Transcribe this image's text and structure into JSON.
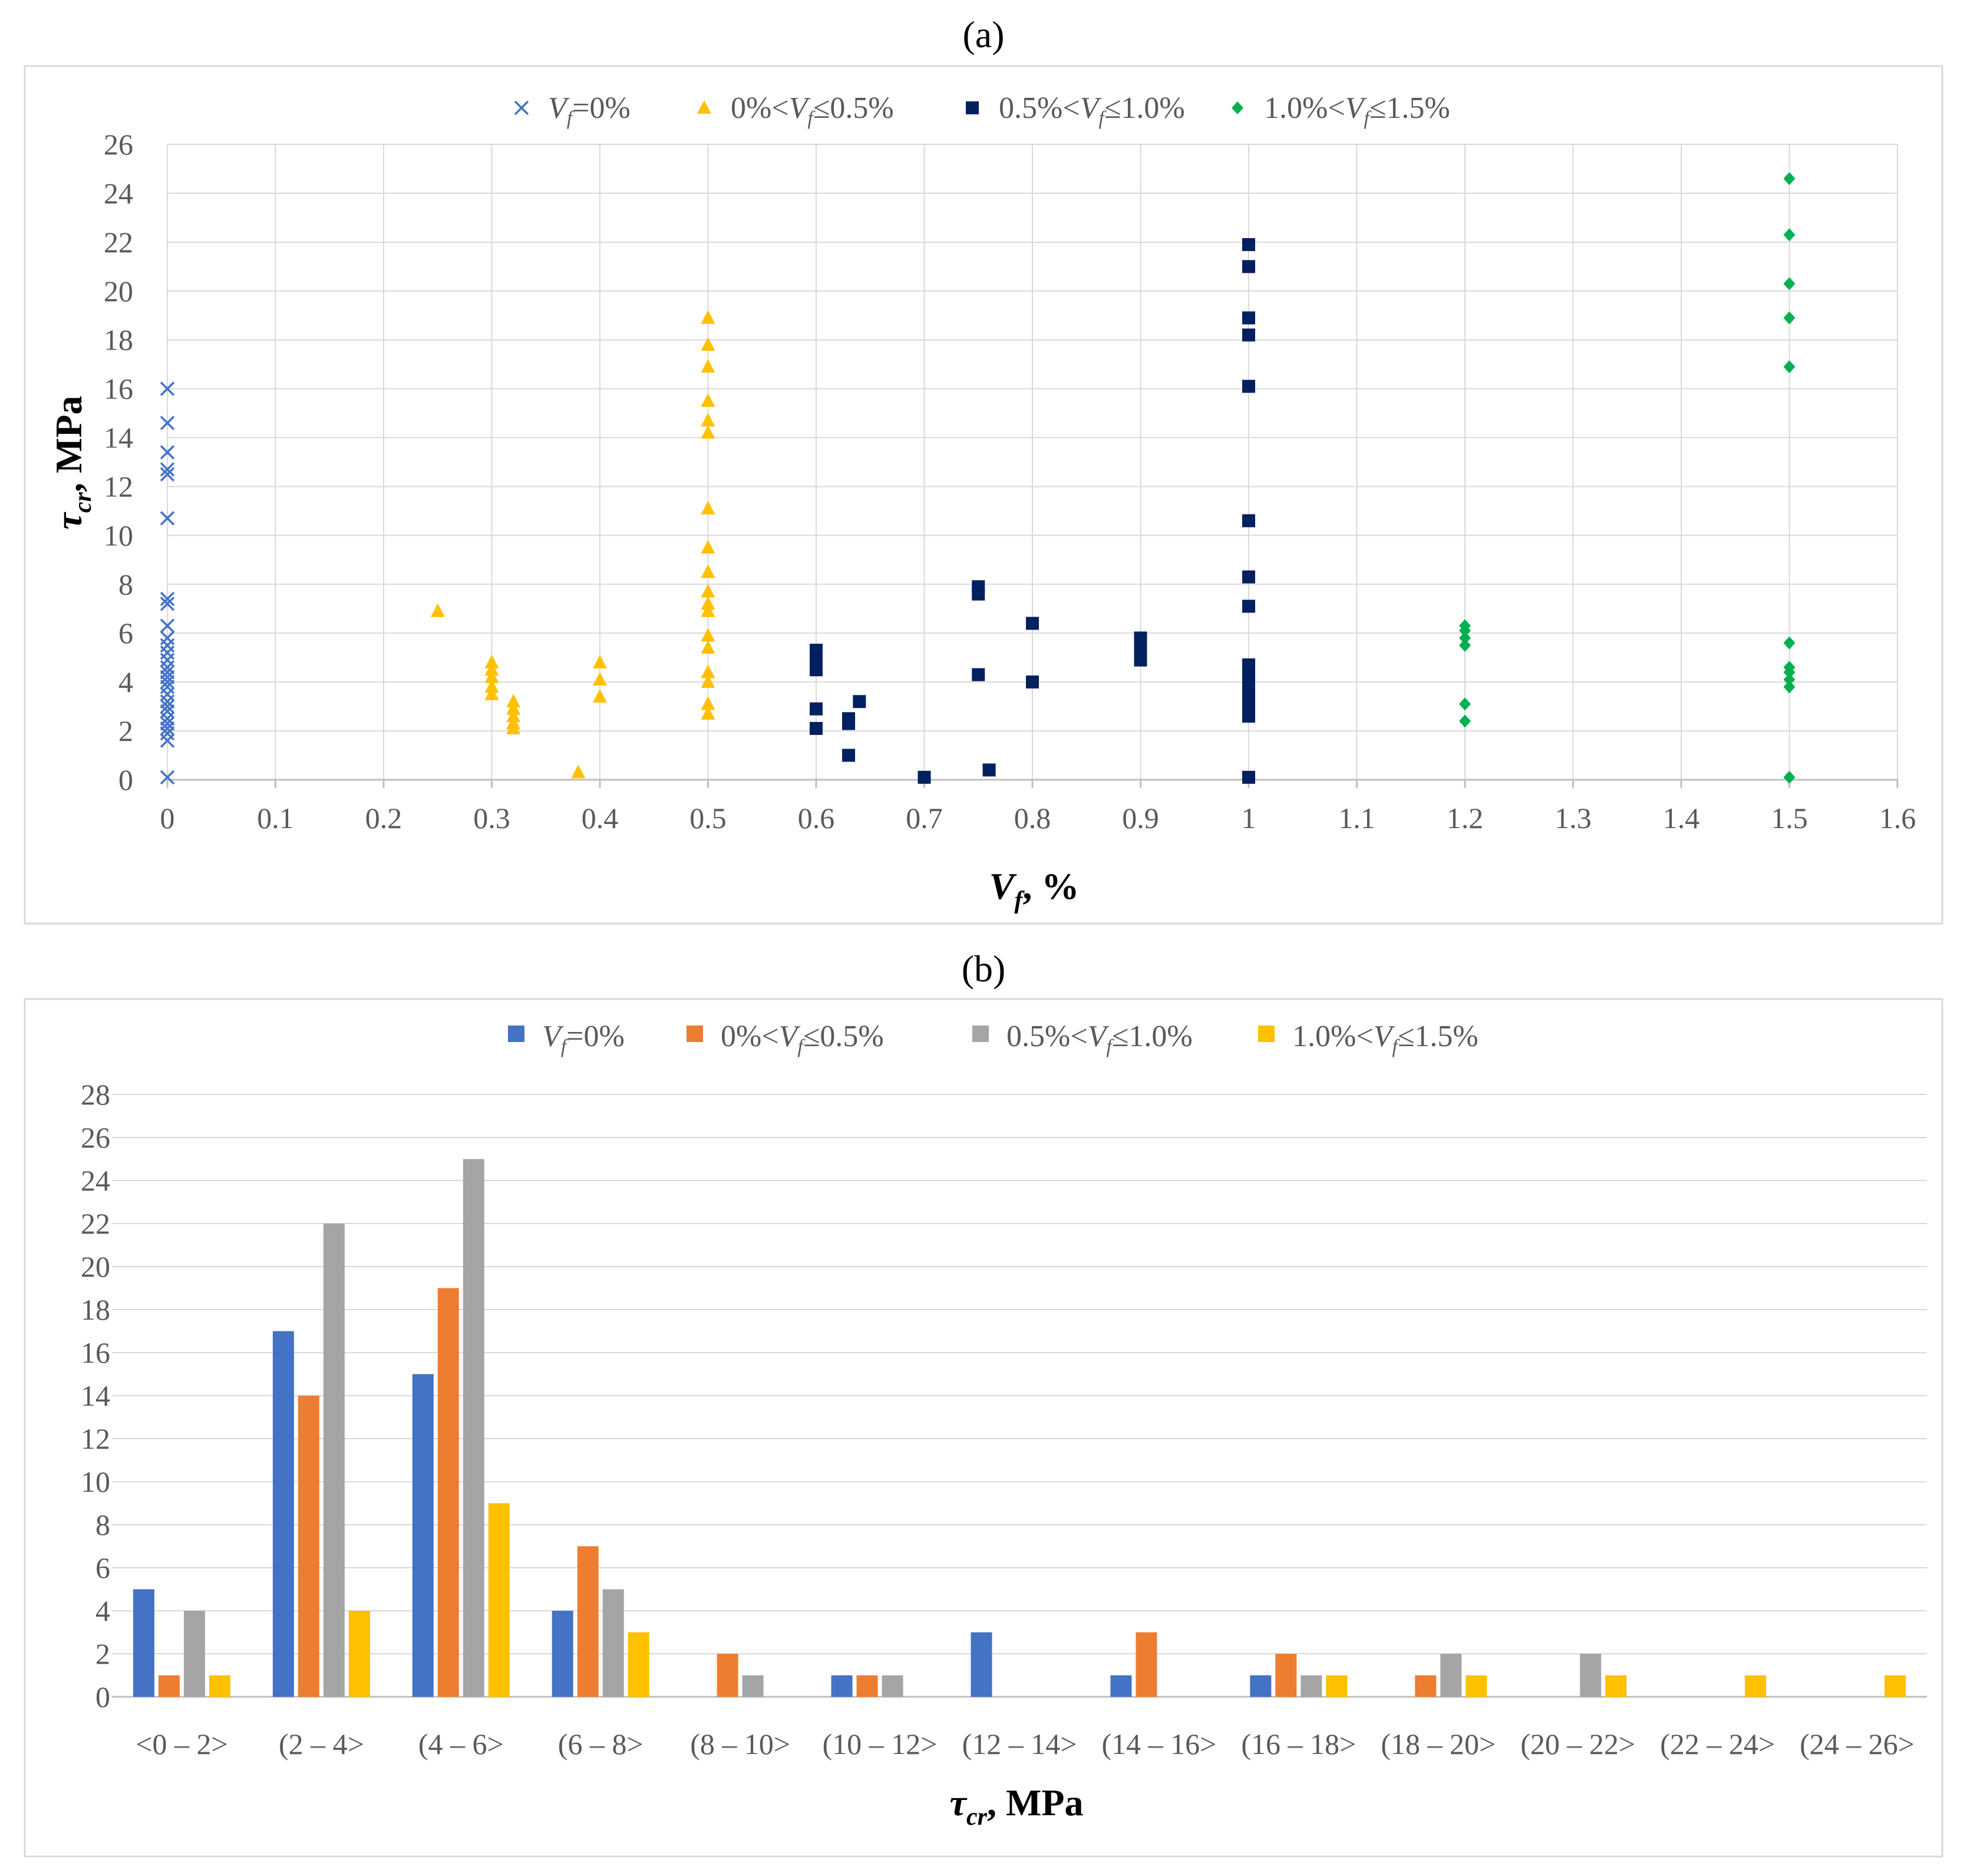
{
  "panel_labels": [
    "(a)",
    "(b)"
  ],
  "chart_data": [
    {
      "type": "scatter",
      "xlabel": "V_f, %",
      "ylabel": "τ_cr, MPa",
      "xlim": [
        0,
        1.6
      ],
      "ylim": [
        0,
        26
      ],
      "x_ticks": [
        0,
        0.1,
        0.2,
        0.3,
        0.4,
        0.5,
        0.6,
        0.7,
        0.8,
        0.9,
        1,
        1.1,
        1.2,
        1.3,
        1.4,
        1.5,
        1.6
      ],
      "x_tick_labels": [
        "0",
        "0.1",
        "0.2",
        "0.3",
        "0.4",
        "0.5",
        "0.6",
        "0.7",
        "0.8",
        "0.9",
        "1",
        "1.1",
        "1.2",
        "1.3",
        "1.4",
        "1.5",
        "1.6"
      ],
      "y_ticks": [
        0,
        2,
        4,
        6,
        8,
        10,
        12,
        14,
        16,
        18,
        20,
        22,
        24,
        26
      ],
      "y_tick_labels": [
        "0",
        "2",
        "4",
        "6",
        "8",
        "10",
        "12",
        "14",
        "16",
        "18",
        "20",
        "22",
        "24",
        "26"
      ],
      "grid": true,
      "legend_position": "top-center",
      "series": [
        {
          "name": "Vf=0%",
          "legend": [
            "V",
            "f",
            "=0%"
          ],
          "marker": "x",
          "color": "#4472C4",
          "points": [
            [
              0,
              16.0
            ],
            [
              0,
              14.6
            ],
            [
              0,
              13.4
            ],
            [
              0,
              12.7
            ],
            [
              0,
              12.5
            ],
            [
              0,
              10.7
            ],
            [
              0,
              7.4
            ],
            [
              0,
              7.2
            ],
            [
              0,
              6.3
            ],
            [
              0,
              5.8
            ],
            [
              0,
              5.5
            ],
            [
              0,
              5.2
            ],
            [
              0,
              4.9
            ],
            [
              0,
              4.6
            ],
            [
              0,
              4.4
            ],
            [
              0,
              4.2
            ],
            [
              0,
              4.0
            ],
            [
              0,
              3.8
            ],
            [
              0,
              3.5
            ],
            [
              0,
              3.2
            ],
            [
              0,
              3.0
            ],
            [
              0,
              2.8
            ],
            [
              0,
              2.5
            ],
            [
              0,
              2.3
            ],
            [
              0,
              2.1
            ],
            [
              0,
              1.9
            ],
            [
              0,
              1.6
            ],
            [
              0,
              0.1
            ]
          ]
        },
        {
          "name": "0%<Vf≤0.5%",
          "legend": [
            "0%<V",
            "f",
            "≤0.5%"
          ],
          "marker": "triangle",
          "color": "#FFC000",
          "points": [
            [
              0.25,
              6.9
            ],
            [
              0.3,
              4.8
            ],
            [
              0.3,
              4.5
            ],
            [
              0.3,
              4.2
            ],
            [
              0.3,
              3.8
            ],
            [
              0.3,
              3.5
            ],
            [
              0.32,
              3.2
            ],
            [
              0.32,
              2.9
            ],
            [
              0.32,
              2.6
            ],
            [
              0.32,
              2.3
            ],
            [
              0.32,
              2.1
            ],
            [
              0.38,
              0.3
            ],
            [
              0.4,
              4.8
            ],
            [
              0.4,
              4.1
            ],
            [
              0.4,
              3.4
            ],
            [
              0.5,
              18.9
            ],
            [
              0.5,
              17.8
            ],
            [
              0.5,
              16.9
            ],
            [
              0.5,
              15.5
            ],
            [
              0.5,
              14.7
            ],
            [
              0.5,
              14.2
            ],
            [
              0.5,
              11.1
            ],
            [
              0.5,
              9.5
            ],
            [
              0.5,
              8.5
            ],
            [
              0.5,
              7.7
            ],
            [
              0.5,
              7.2
            ],
            [
              0.5,
              6.9
            ],
            [
              0.5,
              5.9
            ],
            [
              0.5,
              5.4
            ],
            [
              0.5,
              4.4
            ],
            [
              0.5,
              4.0
            ],
            [
              0.5,
              3.1
            ],
            [
              0.5,
              2.7
            ]
          ]
        },
        {
          "name": "0.5%<Vf≤1.0%",
          "legend": [
            "0.5%<V",
            "f",
            "≤1.0%"
          ],
          "marker": "square",
          "color": "#002060",
          "points": [
            [
              0.6,
              5.3
            ],
            [
              0.6,
              5.0
            ],
            [
              0.6,
              4.7
            ],
            [
              0.6,
              4.5
            ],
            [
              0.6,
              2.9
            ],
            [
              0.6,
              2.1
            ],
            [
              0.63,
              2.5
            ],
            [
              0.63,
              2.3
            ],
            [
              0.63,
              1.0
            ],
            [
              0.64,
              3.2
            ],
            [
              0.7,
              0.1
            ],
            [
              0.75,
              7.9
            ],
            [
              0.75,
              7.6
            ],
            [
              0.75,
              4.3
            ],
            [
              0.76,
              0.4
            ],
            [
              0.8,
              6.4
            ],
            [
              0.8,
              4.0
            ],
            [
              0.9,
              5.8
            ],
            [
              0.9,
              5.5
            ],
            [
              0.9,
              5.2
            ],
            [
              0.9,
              4.9
            ],
            [
              1,
              21.9
            ],
            [
              1,
              21.0
            ],
            [
              1,
              18.9
            ],
            [
              1,
              18.2
            ],
            [
              1,
              16.1
            ],
            [
              1,
              10.6
            ],
            [
              1,
              8.3
            ],
            [
              1,
              7.1
            ],
            [
              1,
              4.7
            ],
            [
              1,
              4.4
            ],
            [
              1,
              4.1
            ],
            [
              1,
              3.8
            ],
            [
              1,
              3.5
            ],
            [
              1,
              3.2
            ],
            [
              1,
              2.9
            ],
            [
              1,
              2.6
            ],
            [
              1,
              0.1
            ]
          ]
        },
        {
          "name": "1.0%<Vf≤1.5%",
          "legend": [
            "1.0%<V",
            "f",
            "≤1.5%"
          ],
          "marker": "diamond",
          "color": "#00B050",
          "points": [
            [
              1.2,
              6.3
            ],
            [
              1.2,
              6.1
            ],
            [
              1.2,
              5.8
            ],
            [
              1.2,
              5.5
            ],
            [
              1.2,
              3.1
            ],
            [
              1.2,
              2.4
            ],
            [
              1.5,
              24.6
            ],
            [
              1.5,
              22.3
            ],
            [
              1.5,
              20.3
            ],
            [
              1.5,
              18.9
            ],
            [
              1.5,
              16.9
            ],
            [
              1.5,
              5.6
            ],
            [
              1.5,
              4.6
            ],
            [
              1.5,
              4.4
            ],
            [
              1.5,
              4.1
            ],
            [
              1.5,
              3.8
            ],
            [
              1.5,
              0.1
            ]
          ]
        }
      ]
    },
    {
      "type": "bar",
      "xlabel": "τ_cr, MPa",
      "ylabel": "",
      "ylim": [
        0,
        28
      ],
      "y_ticks": [
        0,
        2,
        4,
        6,
        8,
        10,
        12,
        14,
        16,
        18,
        20,
        22,
        24,
        26,
        28
      ],
      "y_tick_labels": [
        "0",
        "2",
        "4",
        "6",
        "8",
        "10",
        "12",
        "14",
        "16",
        "18",
        "20",
        "22",
        "24",
        "26",
        "28"
      ],
      "grid": true,
      "legend_position": "top-center",
      "categories": [
        "<0 – 2>",
        "(2 – 4>",
        "(4 – 6>",
        "(6 – 8>",
        "(8 – 10>",
        "(10 – 12>",
        "(12 – 14>",
        "(14 – 16>",
        "(16 – 18>",
        "(18 – 20>",
        "(20 – 22>",
        "(22 – 24>",
        "(24 – 26>"
      ],
      "series": [
        {
          "name": "Vf=0%",
          "legend": [
            "V",
            "f",
            "=0%"
          ],
          "color": "#4472C4",
          "values": [
            5,
            17,
            15,
            4,
            0,
            1,
            3,
            1,
            1,
            0,
            0,
            0,
            0
          ]
        },
        {
          "name": "0%<Vf≤0.5%",
          "legend": [
            "0%<V",
            "f",
            "≤0.5%"
          ],
          "color": "#ED7D31",
          "values": [
            1,
            14,
            19,
            7,
            2,
            1,
            0,
            3,
            2,
            1,
            0,
            0,
            0
          ]
        },
        {
          "name": "0.5%<Vf≤1.0%",
          "legend": [
            "0.5%<V",
            "f",
            "≤1.0%"
          ],
          "color": "#A5A5A5",
          "values": [
            4,
            22,
            25,
            5,
            1,
            1,
            0,
            0,
            1,
            2,
            2,
            0,
            0
          ]
        },
        {
          "name": "1.0%<Vf≤1.5%",
          "legend": [
            "1.0%<V",
            "f",
            "≤1.5%"
          ],
          "color": "#FFC000",
          "values": [
            1,
            4,
            9,
            3,
            0,
            0,
            0,
            0,
            1,
            1,
            1,
            1,
            1
          ]
        }
      ]
    }
  ]
}
